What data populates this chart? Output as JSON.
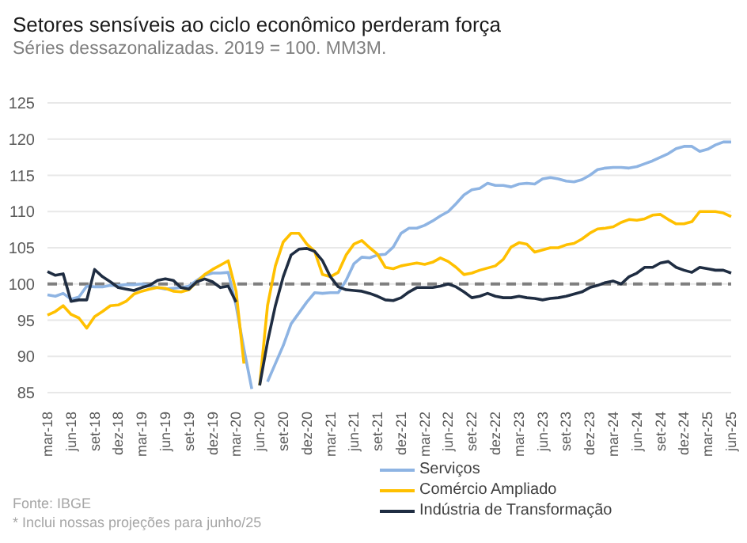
{
  "chart_data": {
    "type": "line",
    "title": "Setores sensíveis ao ciclo econômico perderam força",
    "subtitle": "Séries dessazonalizadas. 2019 = 100. MM3M.",
    "annotations": [
      "Fonte: IBGE",
      "* Inclui nossas projeções para junho/25"
    ],
    "categories": [
      "mar-18",
      null,
      null,
      "jun-18",
      null,
      null,
      "set-18",
      null,
      null,
      "dez-18",
      null,
      null,
      "mar-19",
      null,
      null,
      "jun-19",
      null,
      null,
      "set-19",
      null,
      null,
      "dez-19",
      null,
      null,
      "mar-20",
      null,
      null,
      "jun-20",
      null,
      null,
      "set-20",
      null,
      null,
      "dez-20",
      null,
      null,
      "mar-21",
      null,
      null,
      "jun-21",
      null,
      null,
      "set-21",
      null,
      null,
      "dez-21",
      null,
      null,
      "mar-22",
      null,
      null,
      "jun-22",
      null,
      null,
      "set-22",
      null,
      null,
      "dez-22",
      null,
      null,
      "mar-23",
      null,
      null,
      "jun-23",
      null,
      null,
      "set-23",
      null,
      null,
      "dez-23",
      null,
      null,
      "mar-24",
      null,
      null,
      "jun-24",
      null,
      null,
      "set-24",
      null,
      null,
      "dez-24",
      null,
      null,
      "mar-25",
      null,
      null,
      "jun-25"
    ],
    "series": [
      {
        "name": "Serviços",
        "color": "#8eb4e3",
        "values": [
          98.5,
          98.3,
          98.7,
          97.9,
          98.2,
          99.7,
          99.6,
          99.6,
          99.8,
          99.8,
          99.9,
          99.9,
          100.0,
          99.8,
          99.5,
          99.3,
          99.4,
          99.5,
          99.7,
          100.5,
          101.2,
          101.5,
          101.5,
          101.6,
          97.0,
          91.0,
          85.5,
          null,
          86.5,
          89.0,
          91.5,
          94.5,
          96.0,
          97.5,
          98.8,
          98.7,
          98.8,
          98.8,
          100.5,
          102.8,
          103.7,
          103.6,
          104.0,
          104.1,
          105.1,
          107.0,
          107.7,
          107.7,
          108.1,
          108.7,
          109.4,
          110.0,
          111.1,
          112.3,
          113.0,
          113.2,
          113.9,
          113.6,
          113.6,
          113.4,
          113.8,
          113.9,
          113.8,
          114.5,
          114.7,
          114.5,
          114.2,
          114.1,
          114.4,
          115.0,
          115.8,
          116.0,
          116.1,
          116.1,
          116.0,
          116.2,
          116.6,
          117.0,
          117.5,
          118.0,
          118.7,
          119.0,
          119.0,
          118.3,
          118.6,
          119.2,
          119.6,
          119.6
        ]
      },
      {
        "name": "Comércio Ampliado",
        "color": "#ffc000",
        "values": [
          95.7,
          96.2,
          97.0,
          95.8,
          95.3,
          93.9,
          95.5,
          96.2,
          97.0,
          97.1,
          97.6,
          98.6,
          99.0,
          99.3,
          99.5,
          99.4,
          99.0,
          98.9,
          99.2,
          100.3,
          101.3,
          102.0,
          102.6,
          103.2,
          99.0,
          89.0,
          null,
          86.0,
          97.0,
          102.5,
          105.8,
          107.0,
          107.0,
          105.5,
          104.5,
          101.3,
          101.0,
          101.6,
          104.0,
          105.5,
          106.0,
          105.0,
          104.1,
          102.3,
          102.1,
          102.5,
          102.7,
          102.9,
          102.7,
          103.0,
          103.6,
          103.1,
          102.3,
          101.3,
          101.5,
          101.9,
          102.2,
          102.5,
          103.4,
          105.1,
          105.7,
          105.5,
          104.4,
          104.7,
          105.0,
          105.0,
          105.4,
          105.6,
          106.2,
          107.0,
          107.6,
          107.7,
          107.9,
          108.5,
          108.9,
          108.8,
          109.0,
          109.5,
          109.6,
          108.9,
          108.3,
          108.3,
          108.6,
          110.0,
          110.0,
          110.0,
          109.8,
          109.3
        ]
      },
      {
        "name": "Indústria de Transformação",
        "color": "#1f2d42",
        "values": [
          101.7,
          101.2,
          101.4,
          97.6,
          97.8,
          97.8,
          102.0,
          101.0,
          100.3,
          99.5,
          99.3,
          99.1,
          99.5,
          99.8,
          100.5,
          100.7,
          100.5,
          99.5,
          99.3,
          100.3,
          100.7,
          100.3,
          99.5,
          99.7,
          97.5,
          null,
          null,
          86.0,
          92.0,
          97.0,
          101.0,
          104.0,
          104.8,
          104.9,
          104.5,
          103.2,
          101.0,
          99.6,
          99.2,
          99.1,
          99.0,
          98.7,
          98.3,
          97.8,
          97.7,
          98.1,
          98.9,
          99.5,
          99.5,
          99.5,
          99.7,
          100.0,
          99.6,
          98.9,
          98.1,
          98.3,
          98.7,
          98.3,
          98.1,
          98.1,
          98.3,
          98.1,
          98.0,
          97.8,
          98.0,
          98.1,
          98.3,
          98.6,
          98.9,
          99.5,
          99.8,
          100.2,
          100.4,
          100.0,
          101.0,
          101.5,
          102.3,
          102.3,
          102.9,
          103.1,
          102.3,
          101.9,
          101.6,
          102.3,
          102.1,
          101.9,
          101.9,
          101.5
        ]
      }
    ],
    "ylim": [
      85,
      125
    ],
    "yticks": [
      85,
      90,
      95,
      100,
      105,
      110,
      115,
      120,
      125
    ],
    "grid": "y",
    "legend": "bottom",
    "ref_lines": [
      {
        "axis": "y",
        "value": 100,
        "color": "#7f7f7f",
        "line_style": "dashed"
      }
    ]
  }
}
